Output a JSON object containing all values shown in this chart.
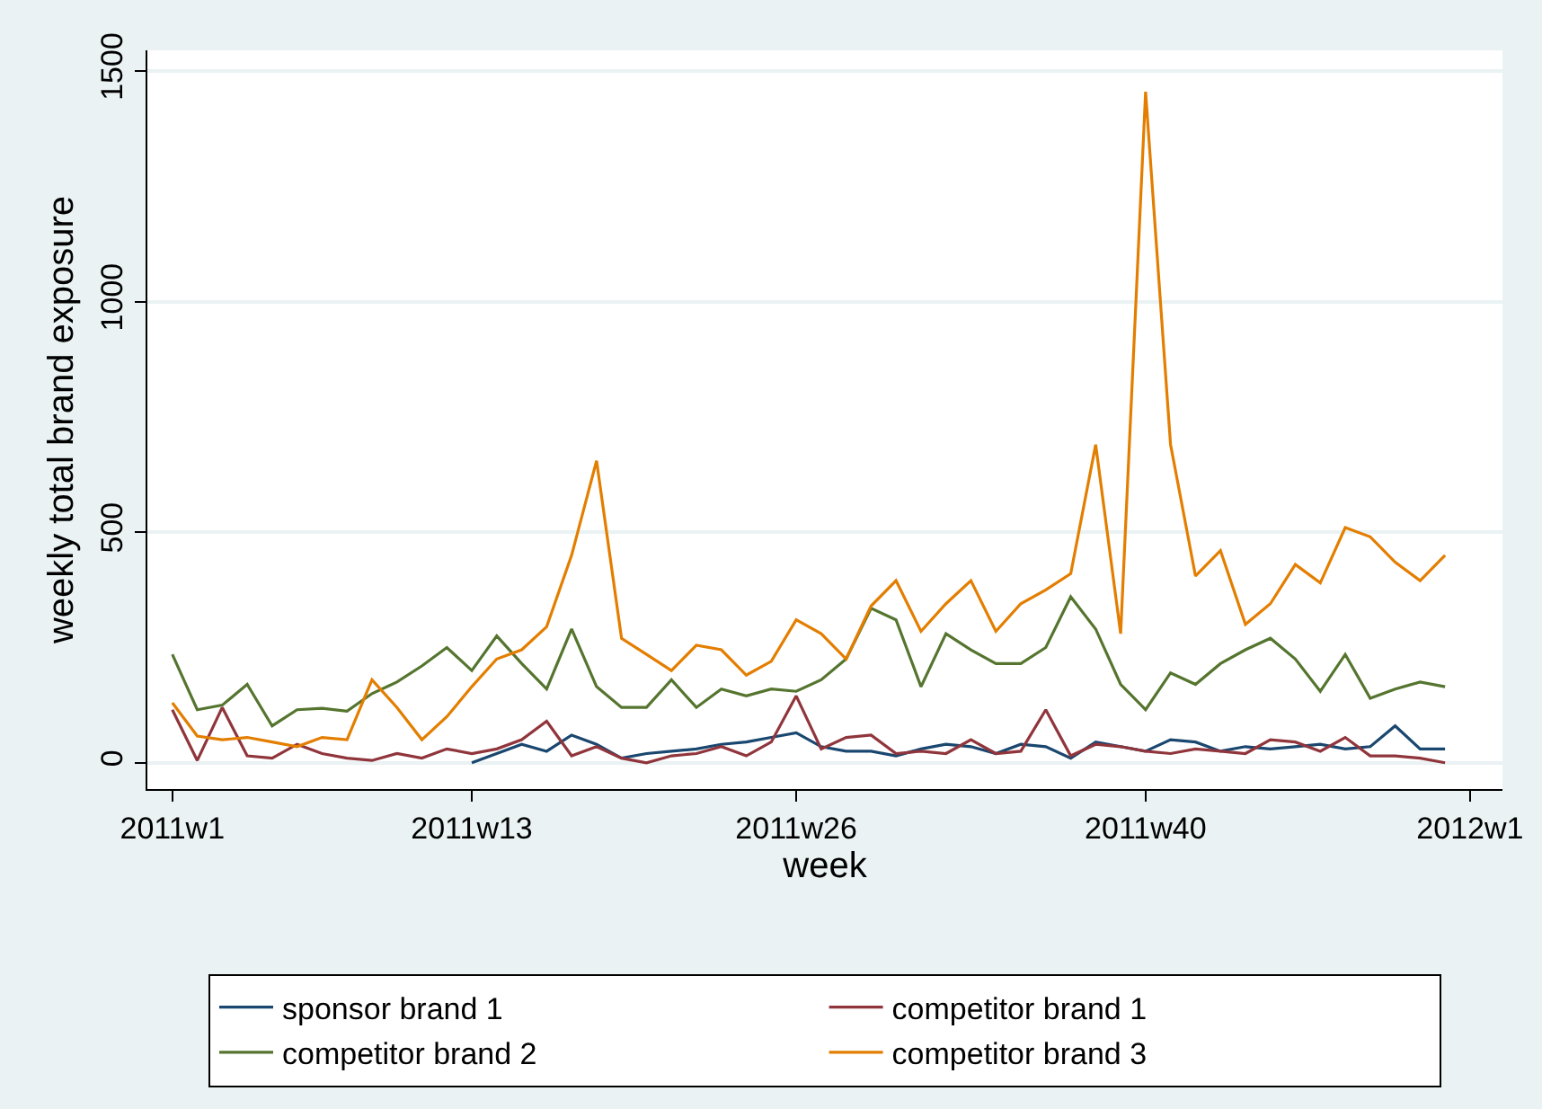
{
  "chart_data": {
    "type": "line",
    "xlabel": "week",
    "ylabel": "weekly total brand exposure",
    "categories": [
      "2011w1",
      null,
      null,
      null,
      null,
      null,
      null,
      null,
      null,
      null,
      null,
      null,
      "2011w13",
      null,
      null,
      null,
      null,
      null,
      null,
      null,
      null,
      null,
      null,
      null,
      null,
      "2011w26",
      null,
      null,
      null,
      null,
      null,
      null,
      null,
      null,
      null,
      null,
      null,
      null,
      null,
      "2011w40",
      null,
      null,
      null,
      null,
      null,
      null,
      null,
      null,
      null,
      null,
      null,
      null,
      "2012w1"
    ],
    "ylim": [
      -57,
      1545
    ],
    "yticks": [
      0,
      500,
      1000,
      1500
    ],
    "grid": "y",
    "legend": "bottom",
    "line_style": "solid",
    "marker": "none",
    "series": [
      {
        "name": "sponsor brand 1",
        "color": "#1a476f",
        "values": [
          null,
          null,
          null,
          null,
          null,
          null,
          null,
          null,
          null,
          null,
          null,
          null,
          0,
          20,
          40,
          25,
          60,
          40,
          10,
          20,
          25,
          30,
          40,
          45,
          55,
          65,
          35,
          25,
          25,
          15,
          30,
          40,
          35,
          20,
          40,
          35,
          10,
          45,
          35,
          25,
          50,
          45,
          25,
          35,
          30,
          35,
          40,
          30,
          35,
          80,
          30,
          30,
          null
        ]
      },
      {
        "name": "competitor brand 1",
        "color": "#90353b",
        "values": [
          115,
          5,
          120,
          15,
          10,
          40,
          20,
          10,
          5,
          20,
          10,
          30,
          20,
          30,
          50,
          90,
          15,
          35,
          10,
          0,
          15,
          20,
          35,
          15,
          45,
          145,
          30,
          55,
          60,
          20,
          25,
          20,
          50,
          20,
          25,
          115,
          15,
          40,
          35,
          25,
          20,
          30,
          25,
          20,
          50,
          45,
          25,
          55,
          15,
          15,
          10,
          0,
          null
        ]
      },
      {
        "name": "competitor brand 2",
        "color": "#55752f",
        "values": [
          235,
          115,
          125,
          170,
          80,
          115,
          118,
          112,
          150,
          175,
          210,
          250,
          200,
          275,
          215,
          160,
          290,
          165,
          120,
          120,
          180,
          120,
          160,
          145,
          160,
          155,
          180,
          225,
          335,
          310,
          165,
          280,
          245,
          215,
          215,
          250,
          360,
          290,
          170,
          115,
          195,
          170,
          215,
          245,
          270,
          225,
          155,
          235,
          140,
          160,
          175,
          165,
          null
        ]
      },
      {
        "name": "competitor brand 3",
        "color": "#e37e00",
        "values": [
          130,
          58,
          50,
          55,
          45,
          35,
          55,
          50,
          180,
          120,
          50,
          100,
          165,
          225,
          245,
          295,
          450,
          655,
          270,
          235,
          200,
          255,
          245,
          190,
          220,
          310,
          280,
          225,
          340,
          395,
          285,
          345,
          395,
          285,
          345,
          375,
          410,
          690,
          280,
          1455,
          690,
          405,
          460,
          300,
          345,
          430,
          390,
          510,
          490,
          435,
          395,
          450,
          null
        ]
      }
    ]
  }
}
